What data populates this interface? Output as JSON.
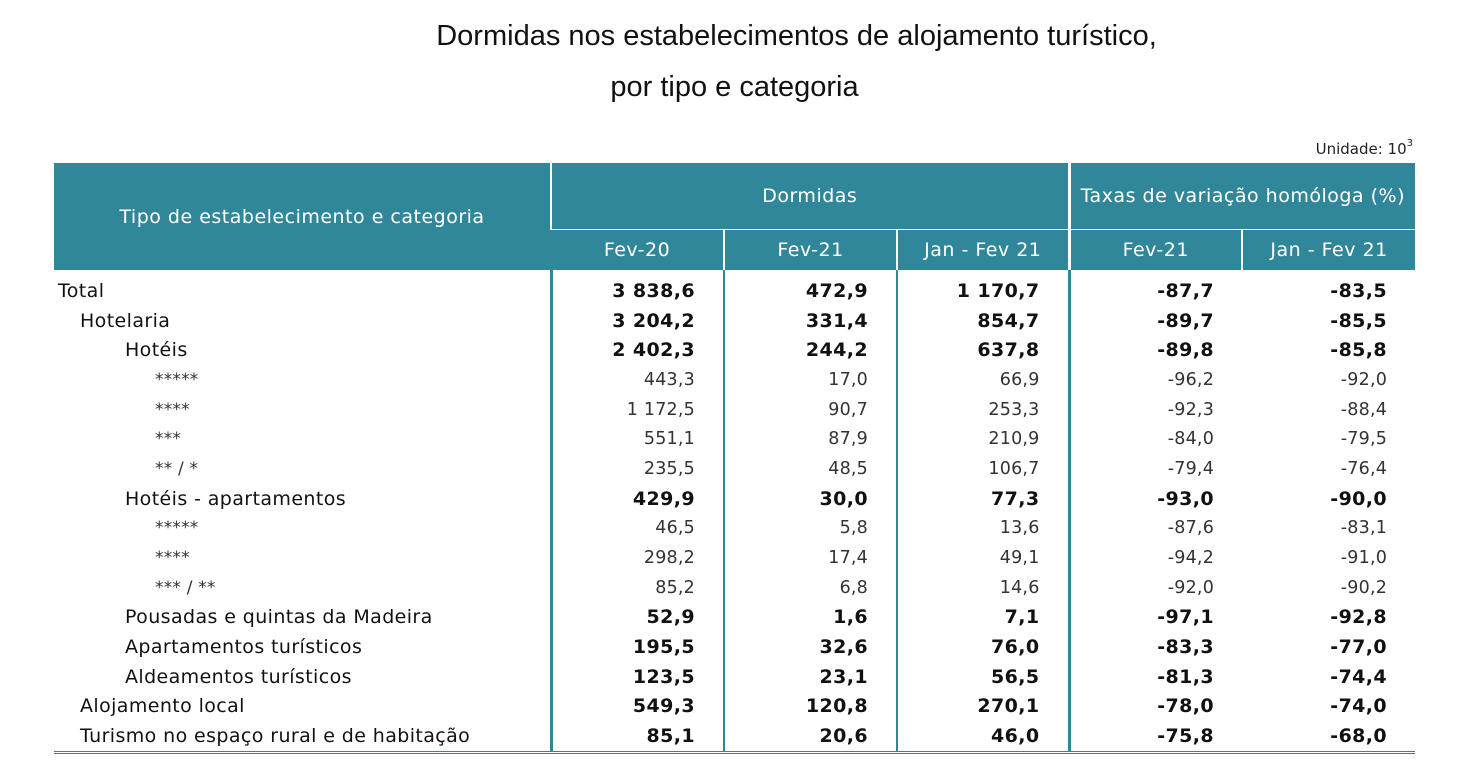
{
  "title_line1": "Dormidas nos estabelecimentos de alojamento turístico,",
  "title_line2": "por tipo e categoria",
  "unit_label": "Unidade: 10",
  "unit_exponent": "3",
  "colors": {
    "header_bg": "#31879a",
    "header_text": "#ffffff",
    "rule": "#31879a"
  },
  "table": {
    "headers": {
      "type_col": "Tipo de estabelecimento e categoria",
      "group_dormidas": "Dormidas",
      "group_rates": "Taxas de variação homóloga (%)",
      "sub": [
        "Fev-20",
        "Fev-21",
        "Jan - Fev 21",
        "Fev-21",
        "Jan - Fev 21"
      ]
    },
    "rows": [
      {
        "label": "Total",
        "level": 0,
        "style": "bold",
        "values": [
          "3 838,6",
          "472,9",
          "1 170,7",
          "-87,7",
          "-83,5"
        ]
      },
      {
        "label": "Hotelaria",
        "level": 1,
        "style": "bold",
        "values": [
          "3 204,2",
          "331,4",
          "854,7",
          "-89,7",
          "-85,5"
        ]
      },
      {
        "label": "Hotéis",
        "level": 2,
        "style": "bold",
        "values": [
          "2 402,3",
          "244,2",
          "637,8",
          "-89,8",
          "-85,8"
        ]
      },
      {
        "label": "*****",
        "level": 3,
        "style": "detail",
        "values": [
          "443,3",
          "17,0",
          "66,9",
          "-96,2",
          "-92,0"
        ]
      },
      {
        "label": "****",
        "level": 3,
        "style": "detail",
        "values": [
          "1 172,5",
          "90,7",
          "253,3",
          "-92,3",
          "-88,4"
        ]
      },
      {
        "label": "***",
        "level": 3,
        "style": "detail",
        "values": [
          "551,1",
          "87,9",
          "210,9",
          "-84,0",
          "-79,5"
        ]
      },
      {
        "label": "** / *",
        "level": 3,
        "style": "detail",
        "values": [
          "235,5",
          "48,5",
          "106,7",
          "-79,4",
          "-76,4"
        ]
      },
      {
        "label": "Hotéis - apartamentos",
        "level": 2,
        "style": "bold",
        "values": [
          "429,9",
          "30,0",
          "77,3",
          "-93,0",
          "-90,0"
        ]
      },
      {
        "label": "*****",
        "level": 3,
        "style": "detail",
        "values": [
          "46,5",
          "5,8",
          "13,6",
          "-87,6",
          "-83,1"
        ]
      },
      {
        "label": "****",
        "level": 3,
        "style": "detail",
        "values": [
          "298,2",
          "17,4",
          "49,1",
          "-94,2",
          "-91,0"
        ]
      },
      {
        "label": "*** / **",
        "level": 3,
        "style": "detail",
        "values": [
          "85,2",
          "6,8",
          "14,6",
          "-92,0",
          "-90,2"
        ]
      },
      {
        "label": "Pousadas e quintas da Madeira",
        "level": 2,
        "style": "bold",
        "values": [
          "52,9",
          "1,6",
          "7,1",
          "-97,1",
          "-92,8"
        ]
      },
      {
        "label": "Apartamentos turísticos",
        "level": 2,
        "style": "bold",
        "values": [
          "195,5",
          "32,6",
          "76,0",
          "-83,3",
          "-77,0"
        ]
      },
      {
        "label": "Aldeamentos turísticos",
        "level": 2,
        "style": "bold",
        "values": [
          "123,5",
          "23,1",
          "56,5",
          "-81,3",
          "-74,4"
        ]
      },
      {
        "label": "Alojamento local",
        "level": 1,
        "style": "bold",
        "values": [
          "549,3",
          "120,8",
          "270,1",
          "-78,0",
          "-74,0"
        ]
      },
      {
        "label": "Turismo no espaço rural e de habitação",
        "level": 1,
        "style": "bold",
        "values": [
          "85,1",
          "20,6",
          "46,0",
          "-75,8",
          "-68,0"
        ]
      }
    ]
  }
}
